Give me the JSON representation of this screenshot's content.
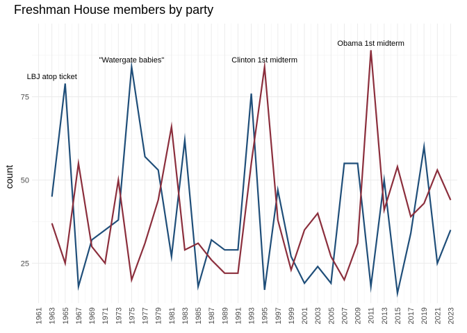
{
  "chart_data": {
    "type": "line",
    "title": "Freshman House members by party",
    "xlabel": "",
    "ylabel": "count",
    "ylim": [
      13,
      97
    ],
    "xlim": [
      1960,
      2024
    ],
    "yticks": [
      25,
      50,
      75
    ],
    "xticks": [
      1961,
      1963,
      1965,
      1967,
      1969,
      1971,
      1973,
      1975,
      1977,
      1979,
      1981,
      1983,
      1985,
      1987,
      1989,
      1991,
      1993,
      1995,
      1997,
      1999,
      2001,
      2003,
      2005,
      2007,
      2009,
      2011,
      2013,
      2015,
      2017,
      2019,
      2021,
      2023
    ],
    "grid": true,
    "x": [
      1963,
      1965,
      1967,
      1969,
      1971,
      1973,
      1975,
      1977,
      1979,
      1981,
      1983,
      1985,
      1987,
      1989,
      1991,
      1993,
      1995,
      1997,
      1999,
      2001,
      2003,
      2005,
      2007,
      2009,
      2011,
      2013,
      2015,
      2017,
      2019,
      2021,
      2023
    ],
    "series": [
      {
        "color": "#1f4e79",
        "values": [
          45,
          79,
          18,
          32,
          35,
          38,
          84,
          57,
          53,
          27,
          62,
          18,
          32,
          29,
          29,
          76,
          17,
          47,
          27,
          19,
          24,
          19,
          55,
          55,
          18,
          50,
          16,
          34,
          60,
          25,
          35
        ]
      },
      {
        "color": "#8b2e3c",
        "values": [
          37,
          25,
          55,
          30,
          25,
          50,
          20,
          31,
          44,
          66,
          29,
          31,
          26,
          22,
          22,
          55,
          84,
          38,
          23,
          35,
          40,
          27,
          20,
          31,
          89,
          41,
          54,
          39,
          43,
          53,
          44
        ]
      }
    ],
    "annotations": [
      {
        "text": "LBJ atop ticket",
        "x": 1963,
        "y": 81
      },
      {
        "text": "\"Watergate babies\"",
        "x": 1975,
        "y": 86
      },
      {
        "text": "Clinton 1st midterm",
        "x": 1995,
        "y": 86
      },
      {
        "text": "Obama 1st midterm",
        "x": 2011,
        "y": 91
      }
    ]
  }
}
